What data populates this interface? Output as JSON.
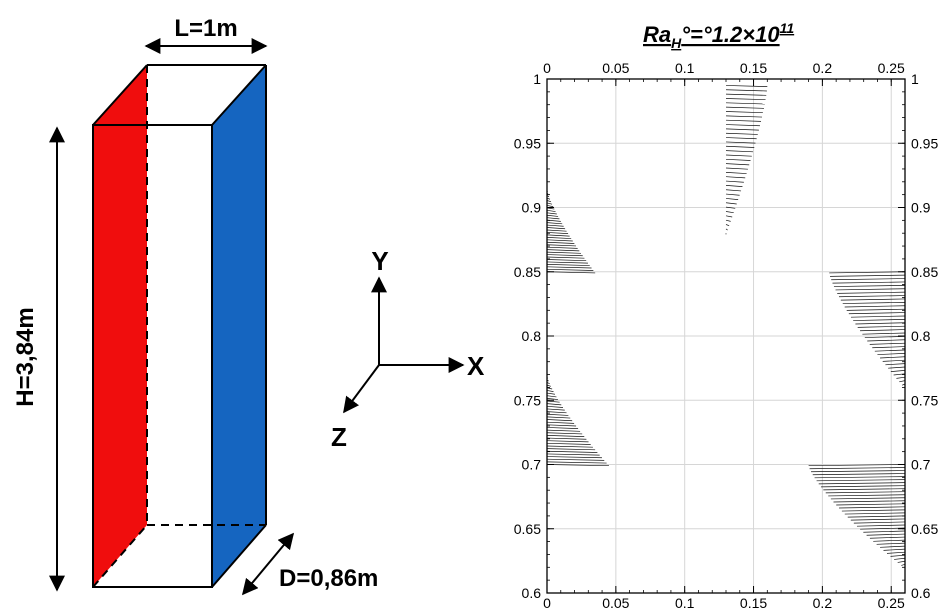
{
  "cavity": {
    "length_label": "L=1m",
    "height_label": "H=3,84m",
    "depth_label": "D=0,86m",
    "hot_wall_color": "#f00d0d",
    "cold_wall_color": "#1565c0"
  },
  "axes_triad": {
    "y": "Y",
    "x": "X",
    "z": "Z"
  },
  "plot": {
    "title_main": "Ra",
    "title_sub": "H",
    "title_mid": "°=°1.2×10",
    "title_sup": "11"
  },
  "chart_data": {
    "type": "vector-field",
    "xlim": [
      0,
      0.26
    ],
    "ylim": [
      0.6,
      1.0
    ],
    "x_ticks": [
      0,
      0.05,
      0.1,
      0.15,
      0.2,
      0.25
    ],
    "x_tick_labels": [
      "0",
      "0.05",
      "0.1",
      "0.15",
      "0.2",
      "0.25"
    ],
    "y_ticks": [
      0.6,
      0.65,
      0.7,
      0.75,
      0.8,
      0.85,
      0.9,
      0.95,
      1.0
    ],
    "y_tick_labels": [
      "0.6",
      "0.65",
      "0.7",
      "0.75",
      "0.8",
      "0.85",
      "0.9",
      "0.95",
      "1"
    ],
    "grid": true,
    "vector_groups": [
      {
        "x0": 0.0,
        "y_top": 0.915,
        "y_bot": 0.85,
        "len_top": 0.0,
        "len_bot": 0.035
      },
      {
        "x0": 0.0,
        "y_top": 0.77,
        "y_bot": 0.7,
        "len_top": 0.0,
        "len_bot": 0.045
      },
      {
        "x0": 0.26,
        "y_top": 0.85,
        "y_bot": 0.76,
        "len_top": -0.055,
        "len_bot": 0.0
      },
      {
        "x0": 0.26,
        "y_top": 0.7,
        "y_bot": 0.62,
        "len_top": -0.07,
        "len_bot": 0.0
      },
      {
        "x0": 0.13,
        "y_top": 0.995,
        "y_bot": 0.88,
        "len_top": 0.03,
        "len_bot": 0.0
      }
    ]
  }
}
